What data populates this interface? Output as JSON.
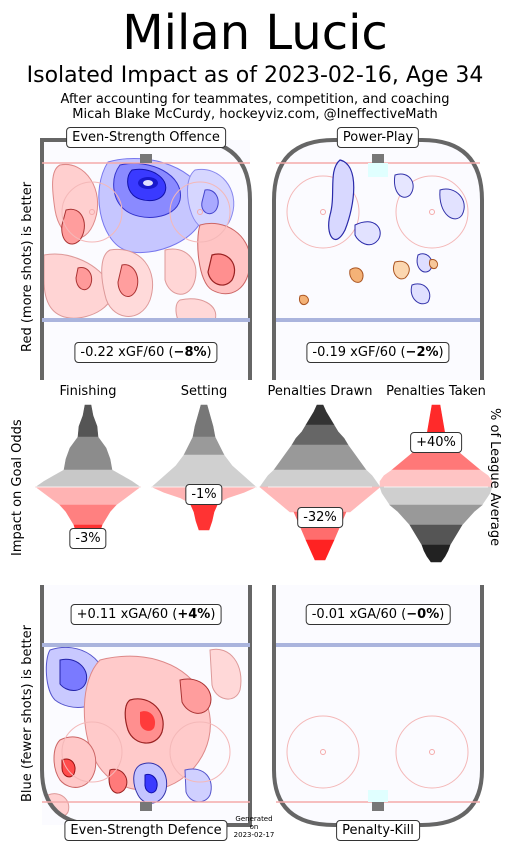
{
  "header": {
    "title": "Milan Lucic",
    "subtitle": "Isolated Impact as of 2023-02-16, Age 34",
    "credit_line1": "After accounting for teammates, competition, and coaching",
    "credit_line2": "Micah Blake McCurdy, hockeyviz.com, @IneffectiveMath"
  },
  "axis_labels": {
    "offence_side": "Red (more shots) is better",
    "defence_side": "Blue (fewer shots) is better",
    "odds_left": "Impact on Goal Odds",
    "odds_right": "% of League Average"
  },
  "panels": {
    "ev_offence": {
      "title": "Even-Strength Offence",
      "value_prefix": "-0.22 xGF/60 (",
      "value_pct": "−8%",
      "value_suffix": ")"
    },
    "power_play": {
      "title": "Power-Play",
      "value_prefix": "-0.19 xGF/60 (",
      "value_pct": "−2%",
      "value_suffix": ")"
    },
    "ev_defence": {
      "title": "Even-Strength Defence",
      "value_prefix": "+0.11 xGA/60 (",
      "value_pct": "+4%",
      "value_suffix": ")"
    },
    "penalty_kill": {
      "title": "Penalty-Kill",
      "value_prefix": "-0.01 xGA/60 (",
      "value_pct": "−0%",
      "value_suffix": ")"
    }
  },
  "chart_data": {
    "type": "violin",
    "categories": [
      "Finishing",
      "Setting",
      "Penalties Drawn",
      "Penalties Taken"
    ],
    "impacts": [
      {
        "name": "Finishing",
        "label": "-3%",
        "value": -3
      },
      {
        "name": "Setting",
        "label": "-1%",
        "value": -1
      },
      {
        "name": "Penalties Drawn",
        "label": "-32%",
        "value": -32
      },
      {
        "name": "Penalties Taken",
        "label": "+40%",
        "value": 40
      }
    ],
    "colors": {
      "red": "#ff2a2a",
      "blue": "#2a2aff",
      "grey": "#888888",
      "rink": "#666666"
    }
  },
  "footer": {
    "generated_l1": "Generated",
    "generated_l2": "on",
    "generated_l3": "2023-02-17"
  }
}
